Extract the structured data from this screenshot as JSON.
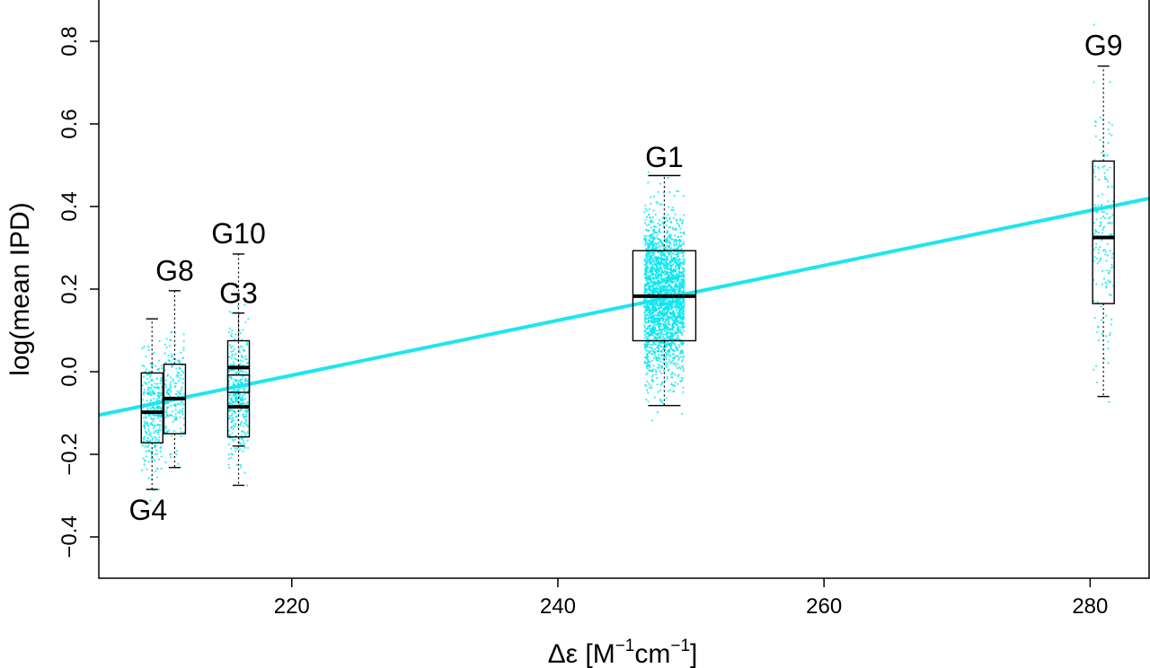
{
  "chart_data": {
    "type": "box",
    "xlabel_prefix": "Δε [M",
    "xlabel_sup1": "−1",
    "xlabel_mid": "cm",
    "xlabel_sup2": "−1",
    "xlabel_suffix": "]",
    "ylabel": "log(mean IPD)",
    "xlim": [
      205.5,
      284.5
    ],
    "ylim": [
      -0.5,
      0.9
    ],
    "xticks": [
      220,
      240,
      260,
      280
    ],
    "yticks": [
      -0.4,
      -0.2,
      0.0,
      0.2,
      0.4,
      0.6,
      0.8
    ],
    "ytick_labels": [
      "−0.4",
      "−0.2",
      "0.0",
      "0.2",
      "0.4",
      "0.6",
      "0.8"
    ],
    "grid": false,
    "point_color": "#00e5ee",
    "fit_line": {
      "color": "#1ee5ee",
      "x": [
        205.5,
        284.5
      ],
      "y": [
        -0.105,
        0.42
      ]
    },
    "groups": [
      {
        "name": "G4",
        "x": 209.5,
        "q1": -0.172,
        "median": -0.098,
        "q3": -0.003,
        "whisker_low": -0.285,
        "whisker_high": 0.128,
        "label_x": 209.2,
        "label_y": -0.335,
        "n_points": 300,
        "spread_y": [
          -0.47,
          0.39
        ]
      },
      {
        "name": "G8",
        "x": 211.2,
        "q1": -0.15,
        "median": -0.065,
        "q3": 0.018,
        "whisker_low": -0.232,
        "whisker_high": 0.196,
        "label_x": 211.2,
        "label_y": 0.245,
        "n_points": 180,
        "spread_y": [
          -0.33,
          0.43
        ]
      },
      {
        "name": "G10",
        "x": 216.0,
        "q1": -0.05,
        "median": 0.01,
        "q3": 0.075,
        "whisker_low": -0.18,
        "whisker_high": 0.285,
        "label_x": 216.0,
        "label_y": 0.335,
        "n_points": 120,
        "spread_y": [
          -0.28,
          0.68
        ]
      },
      {
        "name": "G3",
        "x": 216.0,
        "q1": -0.158,
        "median": -0.085,
        "q3": -0.008,
        "whisker_low": -0.275,
        "whisker_high": 0.142,
        "label_x": 216.0,
        "label_y": 0.19,
        "n_points": 260,
        "spread_y": [
          -0.42,
          0.43
        ]
      },
      {
        "name": "G1",
        "x": 248.0,
        "q1": 0.075,
        "median": 0.183,
        "q3": 0.293,
        "whisker_low": -0.082,
        "whisker_high": 0.475,
        "label_x": 248.0,
        "label_y": 0.52,
        "n_points": 2400,
        "spread_y": [
          -0.4,
          0.87
        ]
      },
      {
        "name": "G9",
        "x": 281.0,
        "q1": 0.165,
        "median": 0.325,
        "q3": 0.51,
        "whisker_low": -0.06,
        "whisker_high": 0.74,
        "label_x": 281.0,
        "label_y": 0.79,
        "n_points": 170,
        "spread_y": [
          -0.34,
          0.89
        ]
      }
    ]
  }
}
